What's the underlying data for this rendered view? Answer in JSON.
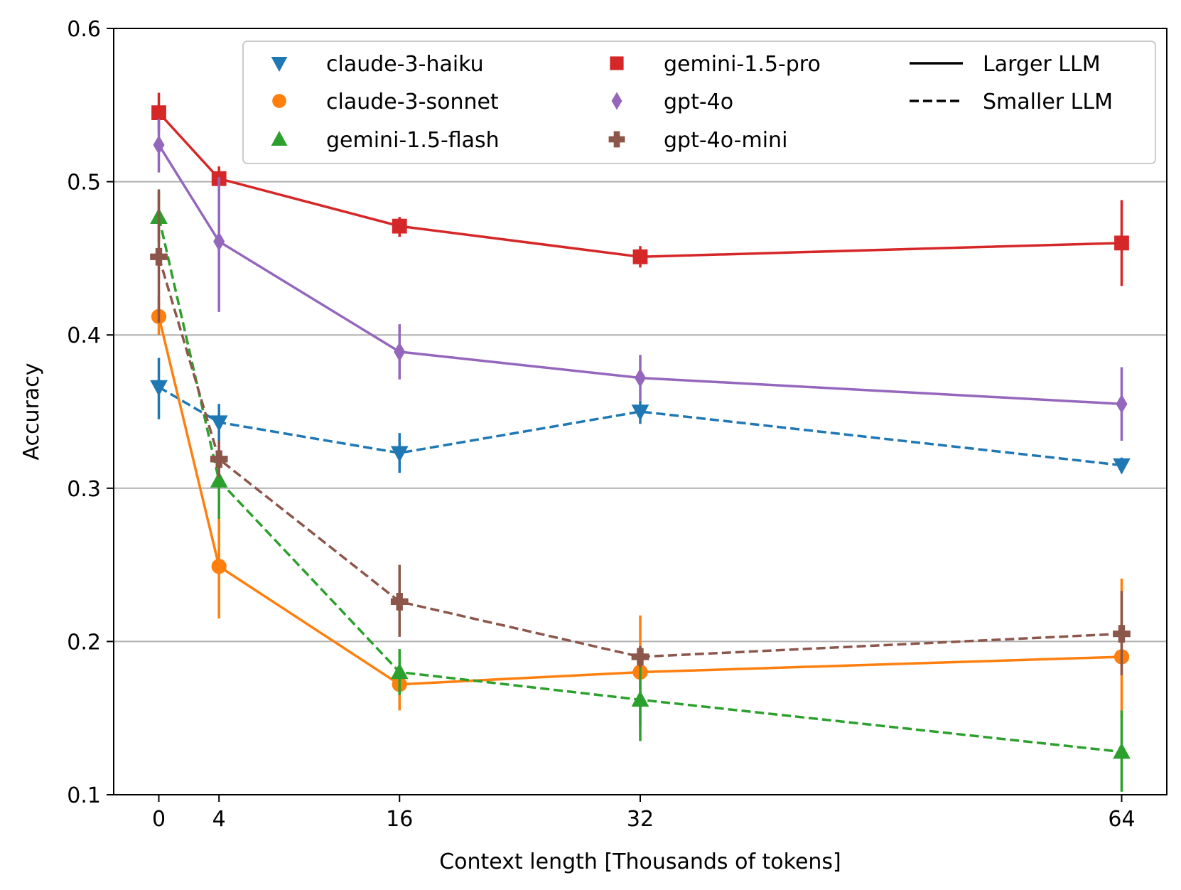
{
  "chart_data": {
    "type": "line",
    "title": "",
    "xlabel": "Context length [Thousands of tokens]",
    "ylabel": "Accuracy",
    "x": [
      0,
      4,
      16,
      32,
      64
    ],
    "xlim": [
      -3,
      67
    ],
    "ylim": [
      0.1,
      0.6
    ],
    "xticks": [
      0,
      4,
      16,
      32,
      64
    ],
    "yticks": [
      0.1,
      0.2,
      0.3,
      0.4,
      0.5,
      0.6
    ],
    "xtick_labels": [
      "0",
      "4",
      "16",
      "32",
      "64"
    ],
    "ytick_labels": [
      "0.1",
      "0.2",
      "0.3",
      "0.4",
      "0.5",
      "0.6"
    ],
    "grid": "horizontal",
    "legend_position": "top-right",
    "series": [
      {
        "name": "claude-3-haiku",
        "color": "#1f77b4",
        "marker": "triangle-down",
        "linestyle": "dashed",
        "values": [
          0.366,
          0.343,
          0.323,
          0.35,
          0.315
        ],
        "err_low": [
          0.345,
          0.33,
          0.31,
          0.342,
          0.31
        ],
        "err_high": [
          0.385,
          0.355,
          0.336,
          0.357,
          0.32
        ]
      },
      {
        "name": "claude-3-sonnet",
        "color": "#ff7f0e",
        "marker": "circle",
        "linestyle": "solid",
        "values": [
          0.412,
          0.249,
          0.172,
          0.18,
          0.19
        ],
        "err_low": [
          0.4,
          0.215,
          0.155,
          0.145,
          0.15
        ],
        "err_high": [
          0.425,
          0.282,
          0.188,
          0.217,
          0.241
        ]
      },
      {
        "name": "gemini-1.5-flash",
        "color": "#2ca02c",
        "marker": "triangle-up",
        "linestyle": "dashed",
        "values": [
          0.477,
          0.305,
          0.18,
          0.162,
          0.128
        ],
        "err_low": [
          0.46,
          0.28,
          0.165,
          0.135,
          0.102
        ],
        "err_high": [
          0.493,
          0.33,
          0.195,
          0.19,
          0.155
        ]
      },
      {
        "name": "gemini-1.5-pro",
        "color": "#d62728",
        "marker": "square",
        "linestyle": "solid",
        "values": [
          0.545,
          0.502,
          0.471,
          0.451,
          0.46
        ],
        "err_low": [
          0.533,
          0.497,
          0.464,
          0.444,
          0.432
        ],
        "err_high": [
          0.558,
          0.51,
          0.477,
          0.458,
          0.488
        ]
      },
      {
        "name": "gpt-4o",
        "color": "#9467bd",
        "marker": "diamond",
        "linestyle": "solid",
        "values": [
          0.524,
          0.461,
          0.389,
          0.372,
          0.355
        ],
        "err_low": [
          0.506,
          0.415,
          0.371,
          0.357,
          0.331
        ],
        "err_high": [
          0.541,
          0.503,
          0.407,
          0.387,
          0.379
        ]
      },
      {
        "name": "gpt-4o-mini",
        "color": "#8c564b",
        "marker": "plus",
        "linestyle": "dashed",
        "values": [
          0.451,
          0.319,
          0.226,
          0.19,
          0.205
        ],
        "err_low": [
          0.408,
          0.307,
          0.203,
          0.183,
          0.178
        ],
        "err_high": [
          0.495,
          0.331,
          0.25,
          0.197,
          0.233
        ]
      }
    ],
    "legend_style_entries": [
      {
        "label": "Larger LLM",
        "linestyle": "solid"
      },
      {
        "label": "Smaller LLM",
        "linestyle": "dashed"
      }
    ]
  }
}
